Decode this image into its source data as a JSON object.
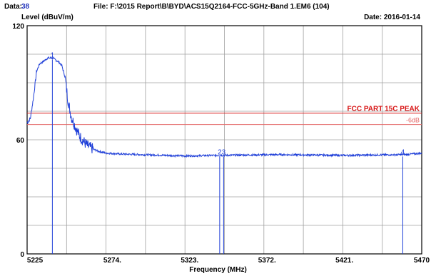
{
  "header": {
    "data_label": "Data:",
    "data_value": "38",
    "file_text": "File: F:\\2015 Report\\B\\BYD\\ACS15Q2164-FCC-5GHz-Band 1.EM6  (104)",
    "date_text": "Date: 2016-01-14"
  },
  "chart_data": {
    "type": "line",
    "xlabel": "Frequency (MHz)",
    "ylabel": "Level (dBuV/m)",
    "xlim": [
      5220,
      5470
    ],
    "ylim": [
      0,
      120
    ],
    "x_ticks": [
      5225,
      5274,
      5323,
      5372,
      5421,
      5470
    ],
    "x_tick_labels": [
      "5225",
      "5274.",
      "5323.",
      "5372.",
      "5421.",
      "5470"
    ],
    "y_tick_labels": [
      "120",
      "60",
      "0"
    ],
    "y_ticks": [
      120,
      60,
      0
    ],
    "grid": true,
    "series": [
      {
        "color": "#1f3fd8",
        "x": [
          5220,
          5222,
          5224,
          5226,
          5228,
          5230,
          5233,
          5236,
          5238,
          5240,
          5242,
          5244,
          5246,
          5248,
          5250,
          5252,
          5254,
          5256,
          5258,
          5260,
          5262,
          5265,
          5270,
          5280,
          5300,
          5320,
          5340,
          5360,
          5380,
          5400,
          5420,
          5440,
          5460,
          5470
        ],
        "y": [
          69,
          71,
          82,
          96,
          100,
          101,
          103,
          103,
          102,
          101,
          99,
          93,
          80,
          72,
          68,
          64,
          61,
          59,
          57,
          56,
          55,
          54,
          53,
          52.5,
          52,
          51.5,
          51.8,
          52,
          52.2,
          52,
          51.8,
          52,
          52.2,
          53
        ]
      }
    ],
    "limit_lines": [
      {
        "label": "FCC PART 15C PEAK",
        "value": 74,
        "color": "#d81818"
      },
      {
        "label": "-6dB",
        "value": 68,
        "color": "#e46a6a"
      }
    ],
    "markers": [
      {
        "label": "1",
        "x": 5236,
        "y": 103
      },
      {
        "label": "2",
        "x": 5342,
        "y": 52
      },
      {
        "label": "3",
        "x": 5344.5,
        "y": 52
      },
      {
        "label": "4",
        "x": 5458,
        "y": 52
      }
    ]
  }
}
